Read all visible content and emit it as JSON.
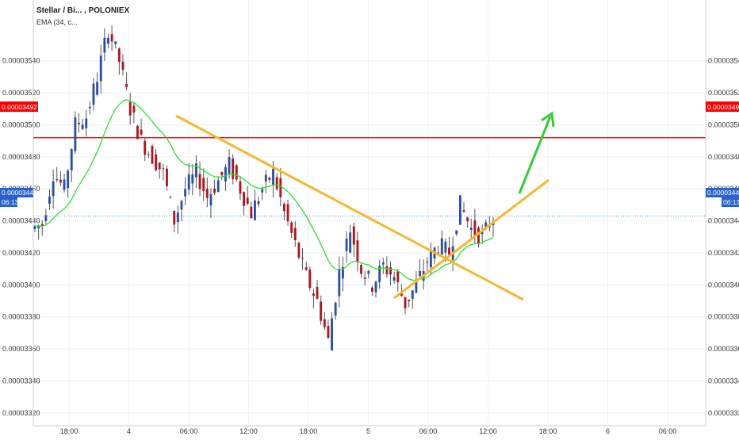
{
  "header": {
    "symbol_title": "Stellar / Bi... , POLONIEX",
    "indicator_label": "EMA (34, c..."
  },
  "price_badges": {
    "resistance_value": "0.00003492",
    "current_value": "0.00003443",
    "countdown": "06:13"
  },
  "colors": {
    "background": "#ffffff",
    "grid": "#eef0f3",
    "up_candle": "#2b4fa5",
    "down_candle": "#b0161e",
    "wick": "#555555",
    "ema": "#33dd33",
    "resistance_line": "#ff0000",
    "current_price_line": "#3b8ed8",
    "trendline": "#f5b731",
    "arrow": "#33cc33"
  },
  "chart_data": {
    "type": "candlestick",
    "title": "Stellar / Bi... , POLONIEX",
    "xlabel": "",
    "ylabel": "",
    "ylim": [
      3.312e-05,
      3.578e-05
    ],
    "y_ticks": [
      "0.00003320",
      "0.00003340",
      "0.00003360",
      "0.00003380",
      "0.00003400",
      "0.00003420",
      "0.00003440",
      "0.00003460",
      "0.00003480",
      "0.00003500",
      "0.00003520",
      "0.00003540"
    ],
    "x_ticks": [
      "18:00",
      "4",
      "06:00",
      "12:00",
      "18:00",
      "5",
      "06:00",
      "12:00",
      "18:00",
      "6",
      "06:00"
    ],
    "grid": true,
    "horizontal_levels": [
      {
        "label": "resistance",
        "value": 3.492e-05
      },
      {
        "label": "current",
        "value": 3.443e-05
      }
    ],
    "ema_period": 34,
    "candles_approx": [
      {
        "o": 3.435,
        "h": 3.44,
        "l": 3.425,
        "c": 3.438
      },
      {
        "o": 3.438,
        "h": 3.475,
        "l": 3.43,
        "c": 3.47
      },
      {
        "o": 3.47,
        "h": 3.49,
        "l": 3.455,
        "c": 3.46
      },
      {
        "o": 3.46,
        "h": 3.505,
        "l": 3.455,
        "c": 3.5
      },
      {
        "o": 3.5,
        "h": 3.515,
        "l": 3.49,
        "c": 3.505
      },
      {
        "o": 3.505,
        "h": 3.535,
        "l": 3.495,
        "c": 3.53
      },
      {
        "o": 3.53,
        "h": 3.575,
        "l": 3.52,
        "c": 3.56
      },
      {
        "o": 3.56,
        "h": 3.578,
        "l": 3.53,
        "c": 3.54
      },
      {
        "o": 3.54,
        "h": 3.56,
        "l": 3.5,
        "c": 3.51
      },
      {
        "o": 3.51,
        "h": 3.52,
        "l": 3.48,
        "c": 3.49
      },
      {
        "o": 3.49,
        "h": 3.5,
        "l": 3.47,
        "c": 3.48
      },
      {
        "o": 3.48,
        "h": 3.49,
        "l": 3.46,
        "c": 3.47
      },
      {
        "o": 3.47,
        "h": 3.475,
        "l": 3.43,
        "c": 3.44
      },
      {
        "o": 3.44,
        "h": 3.47,
        "l": 3.43,
        "c": 3.46
      },
      {
        "o": 3.46,
        "h": 3.48,
        "l": 3.445,
        "c": 3.47
      },
      {
        "o": 3.47,
        "h": 3.485,
        "l": 3.45,
        "c": 3.455
      },
      {
        "o": 3.455,
        "h": 3.47,
        "l": 3.445,
        "c": 3.465
      },
      {
        "o": 3.465,
        "h": 3.48,
        "l": 3.455,
        "c": 3.475
      },
      {
        "o": 3.475,
        "h": 3.485,
        "l": 3.455,
        "c": 3.46
      },
      {
        "o": 3.46,
        "h": 3.47,
        "l": 3.44,
        "c": 3.445
      },
      {
        "o": 3.445,
        "h": 3.465,
        "l": 3.44,
        "c": 3.46
      },
      {
        "o": 3.46,
        "h": 3.48,
        "l": 3.45,
        "c": 3.47
      },
      {
        "o": 3.47,
        "h": 3.478,
        "l": 3.44,
        "c": 3.445
      },
      {
        "o": 3.445,
        "h": 3.45,
        "l": 3.42,
        "c": 3.425
      },
      {
        "o": 3.425,
        "h": 3.43,
        "l": 3.395,
        "c": 3.405
      },
      {
        "o": 3.405,
        "h": 3.42,
        "l": 3.38,
        "c": 3.39
      },
      {
        "o": 3.39,
        "h": 3.41,
        "l": 3.36,
        "c": 3.365
      },
      {
        "o": 3.365,
        "h": 3.415,
        "l": 3.362,
        "c": 3.408
      },
      {
        "o": 3.408,
        "h": 3.44,
        "l": 3.4,
        "c": 3.435
      },
      {
        "o": 3.435,
        "h": 3.44,
        "l": 3.405,
        "c": 3.41
      },
      {
        "o": 3.41,
        "h": 3.418,
        "l": 3.395,
        "c": 3.4
      },
      {
        "o": 3.4,
        "h": 3.415,
        "l": 3.395,
        "c": 3.412
      },
      {
        "o": 3.412,
        "h": 3.418,
        "l": 3.4,
        "c": 3.405
      },
      {
        "o": 3.405,
        "h": 3.41,
        "l": 3.382,
        "c": 3.388
      },
      {
        "o": 3.388,
        "h": 3.405,
        "l": 3.38,
        "c": 3.4
      },
      {
        "o": 3.4,
        "h": 3.42,
        "l": 3.395,
        "c": 3.415
      },
      {
        "o": 3.415,
        "h": 3.43,
        "l": 3.41,
        "c": 3.425
      },
      {
        "o": 3.425,
        "h": 3.435,
        "l": 3.415,
        "c": 3.42
      },
      {
        "o": 3.42,
        "h": 3.455,
        "l": 3.415,
        "c": 3.45
      },
      {
        "o": 3.45,
        "h": 3.452,
        "l": 3.43,
        "c": 3.435
      },
      {
        "o": 3.435,
        "h": 3.448,
        "l": 3.425,
        "c": 3.43
      },
      {
        "o": 3.43,
        "h": 3.445,
        "l": 3.425,
        "c": 3.443
      }
    ]
  }
}
